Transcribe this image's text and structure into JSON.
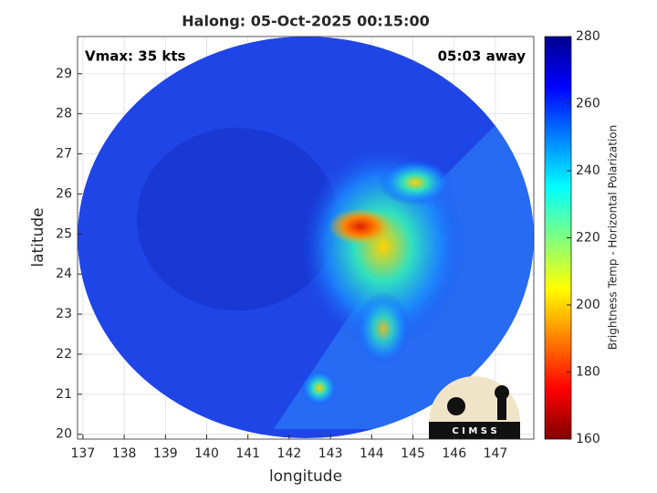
{
  "chart_data": {
    "type": "heatmap",
    "title": "Halong: 05-Oct-2025 00:15:00",
    "annotations": [
      "Vmax: 35 kts",
      "05:03 away"
    ],
    "xlabel": "longitude",
    "ylabel": "latitude",
    "xlim": [
      136.87,
      147.93
    ],
    "ylim": [
      19.88,
      29.93
    ],
    "xticks": [
      137,
      138,
      139,
      140,
      141,
      142,
      143,
      144,
      145,
      146,
      147
    ],
    "yticks": [
      20,
      21,
      22,
      23,
      24,
      25,
      26,
      27,
      28,
      29
    ],
    "grid": true,
    "colorbar": {
      "label": "Brightness Temp - Horizontal Polarization",
      "lim": [
        160,
        280
      ],
      "ticks": [
        160,
        180,
        200,
        220,
        240,
        260,
        280
      ],
      "colormap": "jet"
    },
    "logo_text": "C I M S S"
  }
}
